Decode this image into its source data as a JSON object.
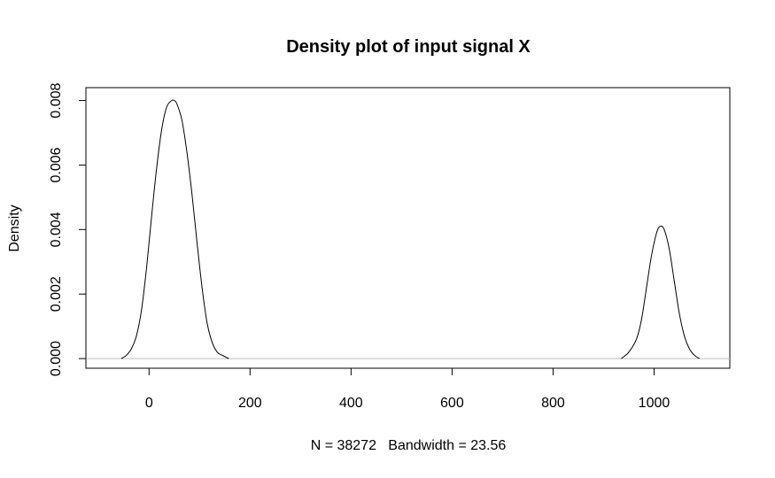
{
  "chart_data": {
    "type": "line",
    "title": "Density plot of input signal X",
    "xlabel": "N = 38272   Bandwidth = 23.56",
    "ylabel": "Density",
    "xlim": [
      -125,
      1150
    ],
    "ylim": [
      -0.0003,
      0.0084
    ],
    "x_ticks": [
      0,
      200,
      400,
      600,
      800,
      1000
    ],
    "x_tick_labels": [
      "0",
      "200",
      "400",
      "600",
      "800",
      "1000"
    ],
    "y_ticks": [
      0.0,
      0.002,
      0.004,
      0.006,
      0.008
    ],
    "y_tick_labels": [
      "0.000",
      "0.002",
      "0.004",
      "0.006",
      "0.008"
    ],
    "baseline": 0,
    "series": [
      {
        "x": [
          -55,
          -45,
          -35,
          -25,
          -15,
          -5,
          5,
          15,
          25,
          35,
          45,
          50,
          55,
          65,
          75,
          85,
          95,
          105,
          115,
          125,
          135,
          145,
          158,
          935,
          950,
          965,
          975,
          985,
          995,
          1005,
          1012,
          1020,
          1030,
          1040,
          1050,
          1060,
          1070,
          1080,
          1090
        ],
        "y": [
          0.0,
          0.0001,
          0.0003,
          0.0007,
          0.0015,
          0.0028,
          0.0044,
          0.0059,
          0.0071,
          0.0078,
          0.008,
          0.008,
          0.0079,
          0.0074,
          0.0064,
          0.0051,
          0.0036,
          0.0022,
          0.0011,
          0.0005,
          0.0002,
          0.0001,
          0.0,
          0.0,
          0.0002,
          0.0006,
          0.0012,
          0.0022,
          0.0032,
          0.0039,
          0.0041,
          0.004,
          0.0034,
          0.0024,
          0.0014,
          0.0007,
          0.0003,
          0.0001,
          0.0
        ]
      }
    ]
  }
}
